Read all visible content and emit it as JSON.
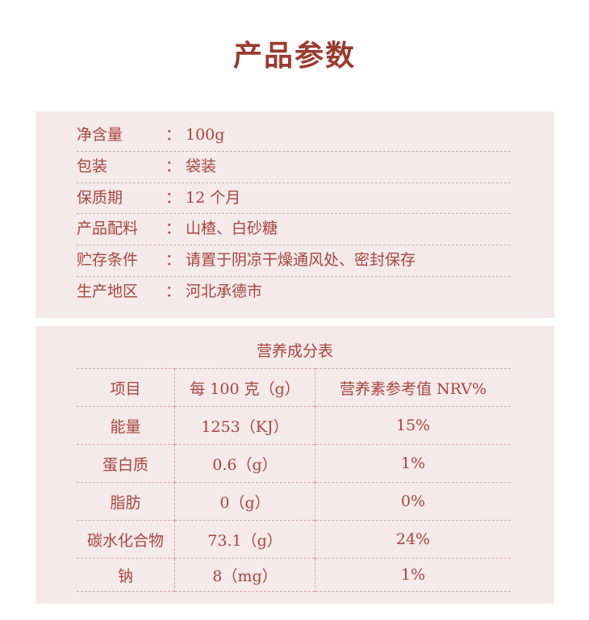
{
  "title": "产品参数",
  "params": [
    {
      "label": "净含量",
      "value": "100g"
    },
    {
      "label": "包装",
      "value": "袋装"
    },
    {
      "label": "保质期",
      "value": "12 个月"
    },
    {
      "label": "产品配料",
      "value": "山楂、白砂糖"
    },
    {
      "label": "贮存条件",
      "value": "请置于阴凉干燥通风处、密封保存"
    },
    {
      "label": "生产地区",
      "value": "河北承德市"
    }
  ],
  "separator": "：",
  "nutrition": {
    "title": "营养成分表",
    "headers": [
      "项目",
      "每 100 克（g）",
      "营养素参考值 NRV%"
    ],
    "rows": [
      [
        "能量",
        "1253（KJ）",
        "15%"
      ],
      [
        "蛋白质",
        "0.6（g）",
        "1%"
      ],
      [
        "脂肪",
        "0（g）",
        "0%"
      ],
      [
        "碳水化合物",
        "73.1（g）",
        "24%"
      ],
      [
        "钠",
        "8（mg）",
        "1%"
      ]
    ]
  }
}
